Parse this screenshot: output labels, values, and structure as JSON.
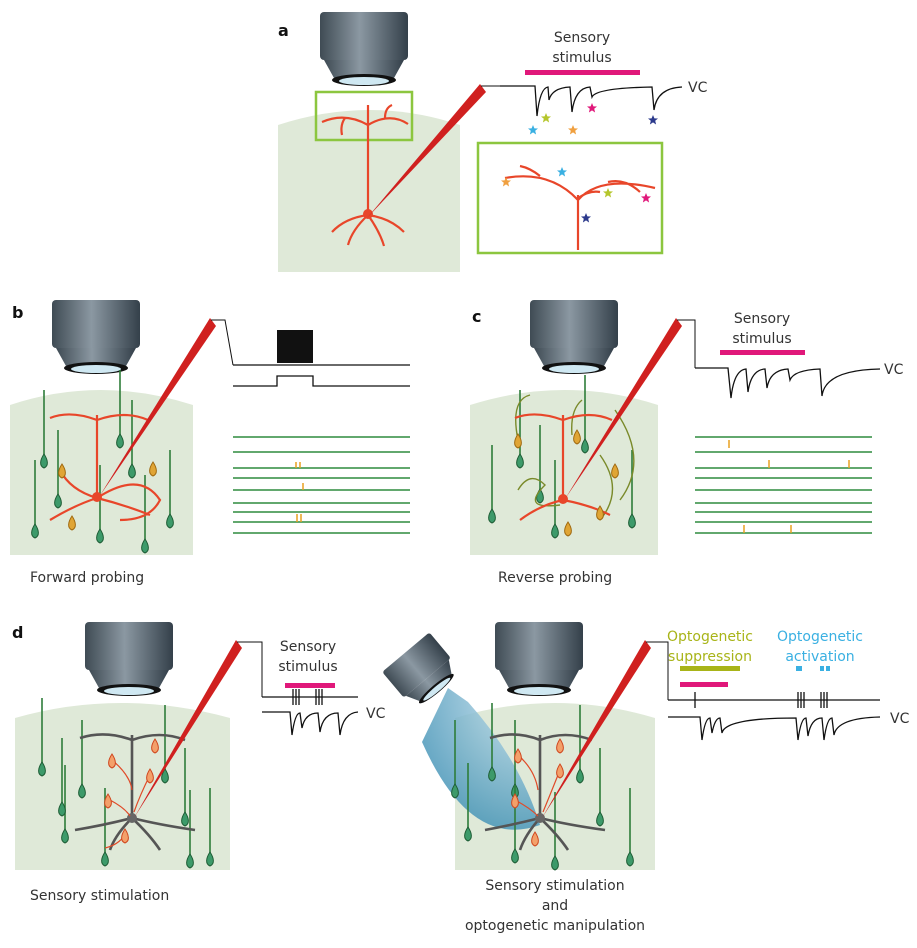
{
  "panels": {
    "a": {
      "label": "a",
      "stimulus_label": [
        "Sensory",
        "stimulus"
      ],
      "trace_label": "VC"
    },
    "b": {
      "label": "b",
      "caption": "Forward probing"
    },
    "c": {
      "label": "c",
      "stimulus_label": [
        "Sensory",
        "stimulus"
      ],
      "trace_label": "VC",
      "caption": "Reverse probing"
    },
    "d": {
      "label": "d",
      "left": {
        "stimulus_label": [
          "Sensory",
          "stimulus"
        ],
        "trace_label": "VC",
        "caption": "Sensory stimulation"
      },
      "right": {
        "suppression_label": [
          "Optogenetic",
          "suppression"
        ],
        "activation_label": [
          "Optogenetic",
          "activation"
        ],
        "trace_label": "VC",
        "caption": [
          "Sensory stimulation",
          "and",
          "optogenetic manipulation"
        ]
      }
    }
  }
}
